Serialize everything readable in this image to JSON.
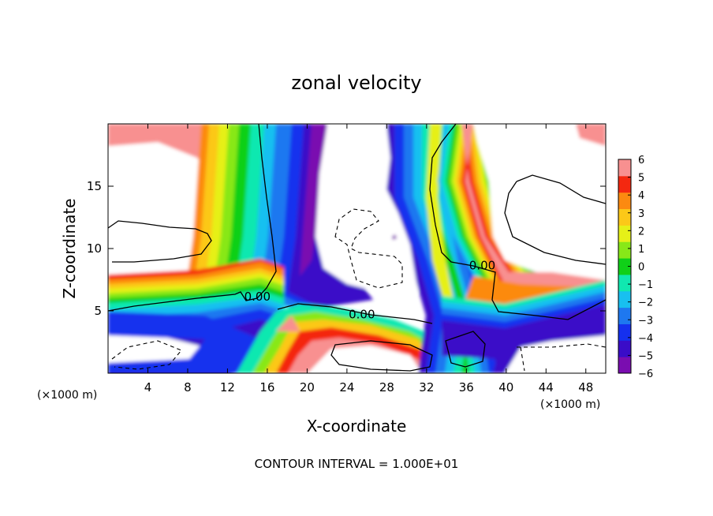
{
  "chart_data": {
    "type": "heatmap",
    "title": "zonal velocity",
    "xlabel": "X-coordinate",
    "ylabel": "Z-coordinate",
    "x_unit_left": "(×1000 m)",
    "x_unit_right": "(×1000 m)",
    "footer": "CONTOUR INTERVAL = 1.000E+01",
    "xlim": [
      0,
      50
    ],
    "ylim": [
      0,
      20
    ],
    "x_ticks": [
      4,
      8,
      12,
      16,
      20,
      24,
      28,
      32,
      36,
      40,
      44,
      48
    ],
    "y_ticks": [
      5,
      10,
      15
    ],
    "contour_labels": [
      {
        "text": "0.00",
        "x": 15.0,
        "y": 6.0
      },
      {
        "text": "0.00",
        "x": 25.5,
        "y": 4.6
      },
      {
        "text": "0.00",
        "x": 37.6,
        "y": 8.5
      }
    ],
    "colorbar": {
      "levels": [
        -6,
        -5,
        -4,
        -3,
        -2,
        -1,
        0,
        1,
        2,
        3,
        4,
        5,
        6
      ],
      "labels": [
        "6",
        "5",
        "4",
        "3",
        "2",
        "1",
        "0",
        "−1",
        "−2",
        "−3",
        "−4",
        "−5",
        "−6"
      ],
      "colors": [
        "#7a0db0",
        "#3a0cc8",
        "#1530ee",
        "#1e78f0",
        "#18c0f0",
        "#10e8b0",
        "#10d018",
        "#88e818",
        "#e6f018",
        "#fcc818",
        "#fc8a10",
        "#f42810",
        "#f89090"
      ]
    }
  }
}
